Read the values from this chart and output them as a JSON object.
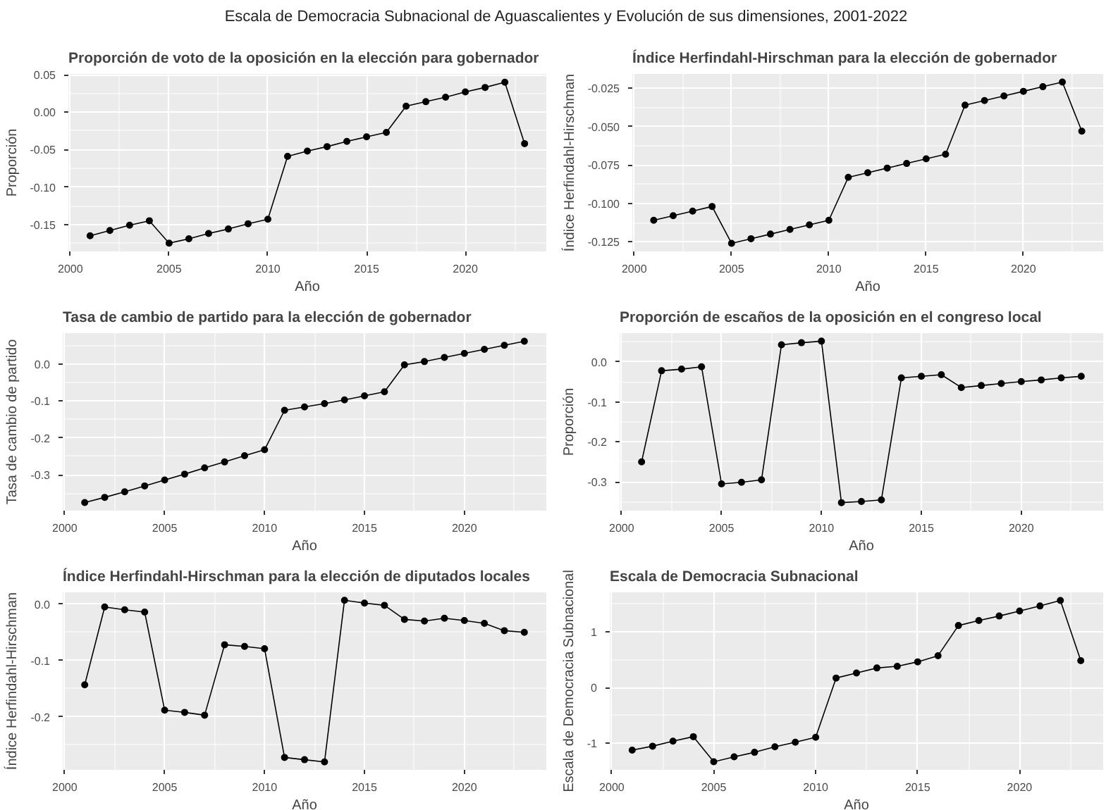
{
  "chart_data": [
    {
      "type": "other",
      "title": "Escala de Democracia Subnacional de Aguascalientes y Evolución de sus dimensiones, 2001-2022"
    },
    {
      "type": "line",
      "title": "Proporción de voto de la oposición en la elección para gobernador",
      "xlabel": "Año",
      "ylabel": "Proporción",
      "color": "#000000",
      "marker": "circle",
      "line_style": "solid",
      "grid": true,
      "x": [
        2001,
        2002,
        2003,
        2004,
        2005,
        2006,
        2007,
        2008,
        2009,
        2010,
        2011,
        2012,
        2013,
        2014,
        2015,
        2016,
        2017,
        2018,
        2019,
        2020,
        2021,
        2022,
        2023
      ],
      "values": [
        -0.165,
        -0.158,
        -0.151,
        -0.145,
        -0.175,
        -0.169,
        -0.162,
        -0.156,
        -0.149,
        -0.143,
        -0.059,
        -0.052,
        -0.046,
        -0.039,
        -0.033,
        -0.027,
        0.008,
        0.014,
        0.02,
        0.027,
        0.033,
        0.04,
        -0.042
      ],
      "xlim": [
        1999.9,
        2024.1
      ],
      "ylim": [
        -0.186,
        0.051
      ],
      "xticks": [
        2000,
        2005,
        2010,
        2015,
        2020
      ],
      "yticks": [
        -0.15,
        {
          "value": -0.1,
          "label": "-0.10"
        },
        {
          "value": -0.05,
          "label": "-0.05"
        },
        {
          "value": 0,
          "label": "0.00"
        },
        0.05
      ]
    },
    {
      "type": "line",
      "title": "Índice Herfindahl-Hirschman para la elección de gobernador",
      "xlabel": "Año",
      "ylabel": "Índice Herfindahl-Hirschman",
      "color": "#000000",
      "marker": "circle",
      "line_style": "solid",
      "grid": true,
      "x": [
        2001,
        2002,
        2003,
        2004,
        2005,
        2006,
        2007,
        2008,
        2009,
        2010,
        2011,
        2012,
        2013,
        2014,
        2015,
        2016,
        2017,
        2018,
        2019,
        2020,
        2021,
        2022,
        2023
      ],
      "values": [
        -0.111,
        -0.108,
        -0.105,
        -0.102,
        -0.126,
        -0.123,
        -0.12,
        -0.117,
        -0.114,
        -0.111,
        -0.083,
        -0.08,
        -0.077,
        -0.074,
        -0.071,
        -0.068,
        -0.036,
        -0.033,
        -0.03,
        -0.027,
        -0.024,
        -0.021,
        -0.053
      ],
      "xlim": [
        1999.9,
        2024.1
      ],
      "ylim": [
        -0.1313,
        -0.0157
      ],
      "xticks": [
        2000,
        2005,
        2010,
        2015,
        2020
      ],
      "yticks": [
        -0.125,
        {
          "value": -0.1,
          "label": "-0.100"
        },
        -0.075,
        {
          "value": -0.05,
          "label": "-0.050"
        },
        -0.025
      ]
    },
    {
      "type": "line",
      "title": "Tasa de cambio de partido para la elección de gobernador",
      "xlabel": "Año",
      "ylabel": "Tasa de cambio de partido",
      "color": "#000000",
      "marker": "circle",
      "line_style": "solid",
      "grid": true,
      "x": [
        2001,
        2002,
        2003,
        2004,
        2005,
        2006,
        2007,
        2008,
        2009,
        2010,
        2011,
        2012,
        2013,
        2014,
        2015,
        2016,
        2017,
        2018,
        2019,
        2020,
        2021,
        2022,
        2023
      ],
      "values": [
        -0.375,
        -0.361,
        -0.346,
        -0.33,
        -0.314,
        -0.298,
        -0.281,
        -0.265,
        -0.248,
        -0.232,
        -0.125,
        -0.116,
        -0.107,
        -0.097,
        -0.086,
        -0.075,
        -0.002,
        0.007,
        0.018,
        0.029,
        0.04,
        0.051,
        0.062
      ],
      "xlim": [
        1999.9,
        2024.1
      ],
      "ylim": [
        -0.397,
        0.084
      ],
      "xticks": [
        2000,
        2005,
        2010,
        2015,
        2020
      ],
      "yticks": [
        -0.3,
        -0.2,
        -0.1,
        {
          "value": 0,
          "label": "0.0"
        }
      ]
    },
    {
      "type": "line",
      "title": "Proporción de escaños de la oposición en el congreso local",
      "xlabel": "Año",
      "ylabel": "Proporción",
      "color": "#000000",
      "marker": "circle",
      "line_style": "solid",
      "grid": true,
      "x": [
        2001,
        2002,
        2003,
        2004,
        2005,
        2006,
        2007,
        2008,
        2009,
        2010,
        2011,
        2012,
        2013,
        2014,
        2015,
        2016,
        2017,
        2018,
        2019,
        2020,
        2021,
        2022,
        2023
      ],
      "values": [
        -0.25,
        -0.022,
        -0.018,
        -0.012,
        -0.305,
        -0.301,
        -0.295,
        0.043,
        0.048,
        0.052,
        -0.352,
        -0.349,
        -0.345,
        -0.04,
        -0.036,
        -0.032,
        -0.064,
        -0.059,
        -0.054,
        -0.049,
        -0.045,
        -0.04,
        -0.036
      ],
      "xlim": [
        1999.9,
        2024.1
      ],
      "ylim": [
        -0.372,
        0.072
      ],
      "xticks": [
        2000,
        2005,
        2010,
        2015,
        2020
      ],
      "yticks": [
        -0.3,
        -0.2,
        -0.1,
        {
          "value": 0,
          "label": "0.0"
        }
      ]
    },
    {
      "type": "line",
      "title": "Índice Herfindahl-Hirschman para la elección de diputados locales",
      "xlabel": "Año",
      "ylabel": "Índice Herfindahl-Hirschman",
      "color": "#000000",
      "marker": "circle",
      "line_style": "solid",
      "grid": true,
      "x": [
        2001,
        2002,
        2003,
        2004,
        2005,
        2006,
        2007,
        2008,
        2009,
        2010,
        2011,
        2012,
        2013,
        2014,
        2015,
        2016,
        2017,
        2018,
        2019,
        2020,
        2021,
        2022,
        2023
      ],
      "values": [
        -0.143,
        -0.005,
        -0.01,
        -0.014,
        -0.188,
        -0.192,
        -0.197,
        -0.072,
        -0.075,
        -0.079,
        -0.272,
        -0.276,
        -0.28,
        0.007,
        0.002,
        -0.002,
        -0.027,
        -0.03,
        -0.025,
        -0.029,
        -0.034,
        -0.047,
        -0.05
      ],
      "xlim": [
        1999.9,
        2024.1
      ],
      "ylim": [
        -0.294,
        0.021
      ],
      "xticks": [
        2000,
        2005,
        2010,
        2015,
        2020
      ],
      "yticks": [
        -0.2,
        -0.1,
        {
          "value": 0,
          "label": "0.0"
        }
      ]
    },
    {
      "type": "line",
      "title": "Escala de Democracia Subnacional",
      "xlabel": "Año",
      "ylabel": "Escala de Democracia Subnacional",
      "color": "#000000",
      "marker": "circle",
      "line_style": "solid",
      "grid": true,
      "x": [
        2001,
        2002,
        2003,
        2004,
        2005,
        2006,
        2007,
        2008,
        2009,
        2010,
        2011,
        2012,
        2013,
        2014,
        2015,
        2016,
        2017,
        2018,
        2019,
        2020,
        2021,
        2022,
        2023
      ],
      "values": [
        -1.12,
        -1.05,
        -0.96,
        -0.88,
        -1.33,
        -1.24,
        -1.16,
        -1.06,
        -0.98,
        -0.89,
        0.17,
        0.26,
        0.35,
        0.38,
        0.46,
        0.57,
        1.11,
        1.2,
        1.28,
        1.37,
        1.46,
        1.56,
        0.48
      ],
      "xlim": [
        1999.9,
        2024.1
      ],
      "ylim": [
        -1.474,
        1.704
      ],
      "xticks": [
        2000,
        2005,
        2010,
        2015,
        2020
      ],
      "yticks": [
        -1,
        0,
        1
      ]
    }
  ]
}
